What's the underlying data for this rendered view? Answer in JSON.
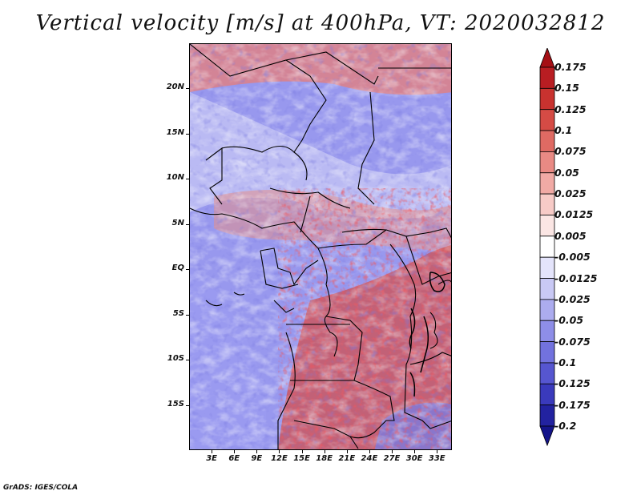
{
  "title": "Vertical velocity [m/s] at 400hPa, VT: 2020032812",
  "footer": "GrADS: IGES/COLA",
  "map": {
    "lat_labels": [
      "20N",
      "15N",
      "10N",
      "5N",
      "EQ",
      "5S",
      "10S",
      "15S"
    ],
    "lat_values": [
      20,
      15,
      10,
      5,
      0,
      -5,
      -10,
      -15
    ],
    "lon_labels": [
      "3E",
      "6E",
      "9E",
      "12E",
      "15E",
      "18E",
      "21E",
      "24E",
      "27E",
      "30E",
      "33E"
    ],
    "lon_values": [
      3,
      6,
      9,
      12,
      15,
      18,
      21,
      24,
      27,
      30,
      33
    ],
    "lon_range": [
      0,
      35
    ],
    "lat_range": [
      -20,
      25
    ]
  },
  "colorbar": {
    "labels": [
      "0.175",
      "0.15",
      "0.125",
      "0.1",
      "0.075",
      "0.05",
      "0.025",
      "0.0125",
      "0.005",
      "-0.005",
      "-0.0125",
      "-0.025",
      "-0.05",
      "-0.075",
      "-0.1",
      "-0.125",
      "-0.175",
      "-0.2"
    ],
    "colors": [
      "#a50f15",
      "#b81d22",
      "#c8322f",
      "#d54b45",
      "#df6a63",
      "#e98a84",
      "#f1aaa5",
      "#f7cbc7",
      "#fbe6e4",
      "#ffffff",
      "#e4e4fb",
      "#c9c9f5",
      "#acacef",
      "#8e8ee8",
      "#7272de",
      "#5656d0",
      "#3a3abc",
      "#2222a0",
      "#14148a"
    ]
  }
}
